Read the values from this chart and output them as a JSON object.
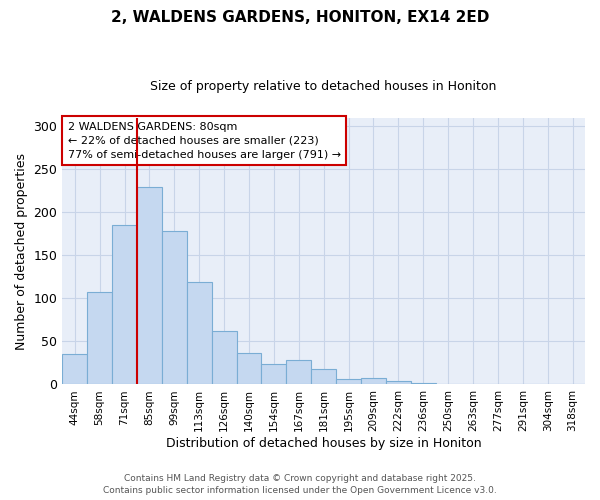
{
  "title": "2, WALDENS GARDENS, HONITON, EX14 2ED",
  "subtitle": "Size of property relative to detached houses in Honiton",
  "xlabel": "Distribution of detached houses by size in Honiton",
  "ylabel": "Number of detached properties",
  "bar_labels": [
    "44sqm",
    "58sqm",
    "71sqm",
    "85sqm",
    "99sqm",
    "113sqm",
    "126sqm",
    "140sqm",
    "154sqm",
    "167sqm",
    "181sqm",
    "195sqm",
    "209sqm",
    "222sqm",
    "236sqm",
    "250sqm",
    "263sqm",
    "277sqm",
    "291sqm",
    "304sqm",
    "318sqm"
  ],
  "bar_values": [
    35,
    108,
    185,
    230,
    178,
    119,
    62,
    36,
    24,
    29,
    18,
    6,
    7,
    4,
    2,
    1,
    0,
    0,
    0,
    0,
    1
  ],
  "bar_color": "#c5d8f0",
  "bar_edgecolor": "#7aadd4",
  "vline_color": "#cc0000",
  "annotation_title": "2 WALDENS GARDENS: 80sqm",
  "annotation_line1": "← 22% of detached houses are smaller (223)",
  "annotation_line2": "77% of semi-detached houses are larger (791) →",
  "annotation_box_edgecolor": "#cc0000",
  "ylim": [
    0,
    310
  ],
  "yticks": [
    0,
    50,
    100,
    150,
    200,
    250,
    300
  ],
  "footer1": "Contains HM Land Registry data © Crown copyright and database right 2025.",
  "footer2": "Contains public sector information licensed under the Open Government Licence v3.0.",
  "bg_color": "#ffffff",
  "plot_bg_color": "#e8eef8",
  "grid_color": "#c8d4e8"
}
